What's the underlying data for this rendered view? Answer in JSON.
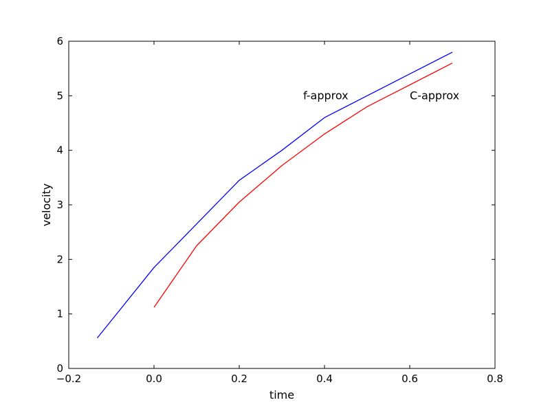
{
  "chart_data": {
    "type": "line",
    "title": "",
    "xlabel": "time",
    "ylabel": "velocity",
    "xlim": [
      -0.2,
      0.8
    ],
    "ylim": [
      0,
      6
    ],
    "xticks": [
      -0.2,
      0.0,
      0.2,
      0.4,
      0.6,
      0.8
    ],
    "xtick_labels": [
      "−0.2",
      "0.0",
      "0.2",
      "0.4",
      "0.6",
      "0.8"
    ],
    "yticks": [
      0,
      1,
      2,
      3,
      4,
      5,
      6
    ],
    "ytick_labels": [
      "0",
      "1",
      "2",
      "3",
      "4",
      "5",
      "6"
    ],
    "grid": false,
    "series": [
      {
        "color": "#0000ff",
        "x": [
          -0.133,
          0.0,
          0.1,
          0.2,
          0.3,
          0.4,
          0.5,
          0.6,
          0.7
        ],
        "y": [
          0.56,
          1.85,
          2.65,
          3.45,
          4.0,
          4.6,
          5.0,
          5.4,
          5.8
        ]
      },
      {
        "color": "#ff0000",
        "x": [
          0.0,
          0.1,
          0.2,
          0.3,
          0.4,
          0.5,
          0.6,
          0.7
        ],
        "y": [
          1.12,
          2.25,
          3.05,
          3.72,
          4.3,
          4.8,
          5.2,
          5.6
        ]
      }
    ],
    "annotations": [
      {
        "text": "f-approx",
        "x": 0.35,
        "y": 5.0
      },
      {
        "text": "C-approx",
        "x": 0.6,
        "y": 5.0
      }
    ]
  }
}
